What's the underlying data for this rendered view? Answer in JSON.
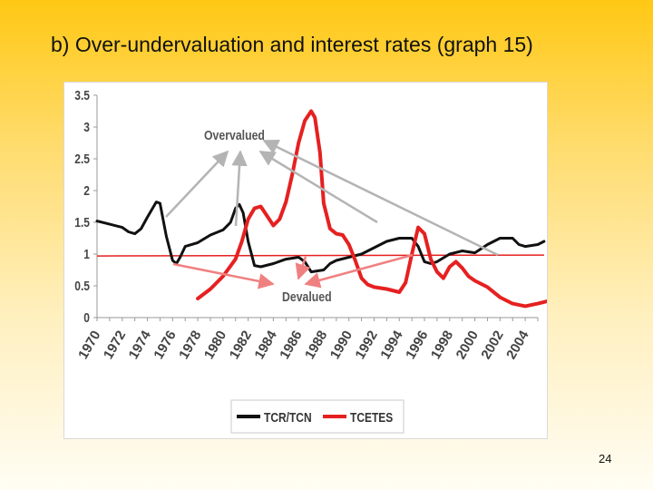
{
  "slide": {
    "title": "b) Over-undervaluation and interest rates (graph 15)",
    "page_number": "24"
  },
  "chart_data": {
    "type": "line",
    "title": "",
    "xlabel": "",
    "ylabel": "",
    "xlim": [
      1970,
      2005
    ],
    "ylim": [
      0,
      3.5
    ],
    "y_ticks": [
      "0",
      "0.5",
      "1",
      "1.5",
      "2",
      "2.5",
      "3",
      "3.5"
    ],
    "x_ticks": [
      "1970",
      "1972",
      "1974",
      "1976",
      "1978",
      "1980",
      "1982",
      "1984",
      "1986",
      "1988",
      "1990",
      "1992",
      "1994",
      "1996",
      "1998",
      "2000",
      "2002",
      "2004"
    ],
    "legend": {
      "position": "bottom",
      "entries": [
        "TCR/TCN",
        "TCETES"
      ]
    },
    "annotations": {
      "overvalued": "Overvalued",
      "devalued": "Devalued"
    },
    "reference_line": {
      "y": 0.97,
      "color": "#e62020"
    },
    "series": [
      {
        "name": "TCR/TCN",
        "color": "#111111",
        "points": [
          [
            1970,
            1.52
          ],
          [
            1971,
            1.47
          ],
          [
            1972,
            1.42
          ],
          [
            1972.5,
            1.35
          ],
          [
            1973,
            1.32
          ],
          [
            1973.5,
            1.4
          ],
          [
            1974,
            1.58
          ],
          [
            1974.7,
            1.82
          ],
          [
            1975,
            1.8
          ],
          [
            1975.5,
            1.28
          ],
          [
            1976,
            0.9
          ],
          [
            1976.3,
            0.85
          ],
          [
            1976.6,
            0.95
          ],
          [
            1977,
            1.12
          ],
          [
            1978,
            1.18
          ],
          [
            1979,
            1.3
          ],
          [
            1980,
            1.38
          ],
          [
            1980.6,
            1.5
          ],
          [
            1981,
            1.72
          ],
          [
            1981.3,
            1.78
          ],
          [
            1981.6,
            1.65
          ],
          [
            1982,
            1.2
          ],
          [
            1982.5,
            0.82
          ],
          [
            1983,
            0.8
          ],
          [
            1984,
            0.85
          ],
          [
            1985,
            0.92
          ],
          [
            1986,
            0.95
          ],
          [
            1986.5,
            0.88
          ],
          [
            1987,
            0.72
          ],
          [
            1988,
            0.75
          ],
          [
            1988.5,
            0.85
          ],
          [
            1989,
            0.9
          ],
          [
            1990,
            0.95
          ],
          [
            1991,
            1.0
          ],
          [
            1992,
            1.1
          ],
          [
            1993,
            1.2
          ],
          [
            1994,
            1.25
          ],
          [
            1995,
            1.25
          ],
          [
            1995.5,
            1.12
          ],
          [
            1996,
            0.88
          ],
          [
            1996.5,
            0.85
          ],
          [
            1997,
            0.88
          ],
          [
            1998,
            1.0
          ],
          [
            1999,
            1.05
          ],
          [
            2000,
            1.02
          ],
          [
            2001,
            1.15
          ],
          [
            2002,
            1.25
          ],
          [
            2003,
            1.25
          ],
          [
            2003.5,
            1.15
          ],
          [
            2004,
            1.12
          ],
          [
            2005,
            1.15
          ],
          [
            2005.5,
            1.2
          ]
        ]
      },
      {
        "name": "TCETES",
        "color": "#e62020",
        "points": [
          [
            1978,
            0.3
          ],
          [
            1979,
            0.45
          ],
          [
            1980,
            0.65
          ],
          [
            1981,
            0.92
          ],
          [
            1981.5,
            1.2
          ],
          [
            1982,
            1.55
          ],
          [
            1982.5,
            1.72
          ],
          [
            1983,
            1.75
          ],
          [
            1983.5,
            1.6
          ],
          [
            1984,
            1.45
          ],
          [
            1984.5,
            1.55
          ],
          [
            1985,
            1.82
          ],
          [
            1985.5,
            2.25
          ],
          [
            1986,
            2.75
          ],
          [
            1986.5,
            3.1
          ],
          [
            1987,
            3.25
          ],
          [
            1987.3,
            3.15
          ],
          [
            1987.7,
            2.6
          ],
          [
            1988,
            1.8
          ],
          [
            1988.5,
            1.4
          ],
          [
            1989,
            1.32
          ],
          [
            1989.5,
            1.3
          ],
          [
            1990,
            1.15
          ],
          [
            1990.5,
            0.9
          ],
          [
            1991,
            0.62
          ],
          [
            1991.5,
            0.52
          ],
          [
            1992,
            0.48
          ],
          [
            1993,
            0.45
          ],
          [
            1994,
            0.4
          ],
          [
            1994.5,
            0.55
          ],
          [
            1995,
            1.0
          ],
          [
            1995.5,
            1.42
          ],
          [
            1996,
            1.32
          ],
          [
            1996.5,
            0.92
          ],
          [
            1997,
            0.72
          ],
          [
            1997.5,
            0.62
          ],
          [
            1998,
            0.8
          ],
          [
            1998.5,
            0.88
          ],
          [
            1999,
            0.78
          ],
          [
            1999.5,
            0.65
          ],
          [
            2000,
            0.58
          ],
          [
            2001,
            0.48
          ],
          [
            2002,
            0.32
          ],
          [
            2003,
            0.22
          ],
          [
            2004,
            0.18
          ],
          [
            2005,
            0.22
          ],
          [
            2006,
            0.27
          ]
        ]
      }
    ]
  }
}
